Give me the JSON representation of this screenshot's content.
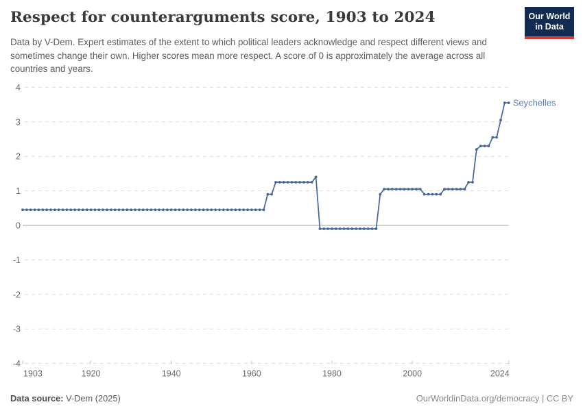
{
  "header": {
    "title": "Respect for counterarguments score, 1903 to 2024",
    "subtitle": "Data by V-Dem. Expert estimates of the extent to which political leaders acknowledge and respect different views and sometimes change their own. Higher scores mean more respect. A score of 0 is approximately the average across all countries and years.",
    "logo_line1": "Our World",
    "logo_line2": "in Data"
  },
  "chart_data": {
    "type": "line",
    "title": "Respect for counterarguments score, 1903 to 2024",
    "xlabel": "",
    "ylabel": "",
    "xlim": [
      1903,
      2024
    ],
    "ylim": [
      -4,
      4
    ],
    "x_ticks": [
      1903,
      1920,
      1940,
      1960,
      1980,
      2000,
      2024
    ],
    "y_ticks": [
      4,
      3,
      2,
      1,
      0,
      -1,
      -2,
      -3,
      -4
    ],
    "grid": "horizontal-dashed",
    "zero_line": true,
    "legend_position": "end-of-line-label",
    "series": [
      {
        "name": "Seychelles",
        "line_color": "#44669c",
        "label_color": "#5d7db5",
        "marker": "dot",
        "segments": [
          {
            "from": 1903,
            "to": 1963,
            "value": 0.45
          },
          {
            "from": 1964,
            "to": 1965,
            "value": 0.9
          },
          {
            "from": 1966,
            "to": 1975,
            "value": 1.25
          },
          {
            "from": 1976,
            "to": 1976,
            "value": 1.4
          },
          {
            "from": 1977,
            "to": 1991,
            "value": -0.1
          },
          {
            "from": 1992,
            "to": 1992,
            "value": 0.9
          },
          {
            "from": 1993,
            "to": 2002,
            "value": 1.05
          },
          {
            "from": 2003,
            "to": 2007,
            "value": 0.9
          },
          {
            "from": 2008,
            "to": 2013,
            "value": 1.05
          },
          {
            "from": 2014,
            "to": 2015,
            "value": 1.25
          },
          {
            "from": 2016,
            "to": 2016,
            "value": 2.2
          },
          {
            "from": 2017,
            "to": 2019,
            "value": 2.3
          },
          {
            "from": 2020,
            "to": 2021,
            "value": 2.55
          },
          {
            "from": 2022,
            "to": 2022,
            "value": 3.05
          },
          {
            "from": 2023,
            "to": 2024,
            "value": 3.55
          }
        ]
      }
    ],
    "colors": {
      "gridline": "#dcdcdc",
      "zero_line": "#a0a0a0",
      "tick_label": "#6b6b6b",
      "tick_mark": "#c0c0c0"
    }
  },
  "footer": {
    "source_label": "Data source:",
    "source_value": "V-Dem (2025)",
    "credit": "OurWorldinData.org/democracy | CC BY"
  }
}
